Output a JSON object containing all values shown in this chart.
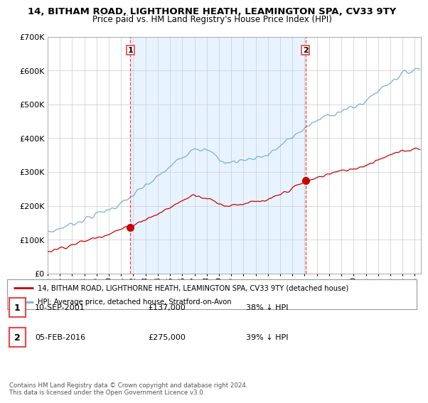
{
  "title": "14, BITHAM ROAD, LIGHTHORNE HEATH, LEAMINGTON SPA, CV33 9TY",
  "subtitle": "Price paid vs. HM Land Registry's House Price Index (HPI)",
  "ylim": [
    0,
    700000
  ],
  "yticks": [
    0,
    100000,
    200000,
    300000,
    400000,
    500000,
    600000,
    700000
  ],
  "ytick_labels": [
    "£0",
    "£100K",
    "£200K",
    "£300K",
    "£400K",
    "£500K",
    "£600K",
    "£700K"
  ],
  "hpi_color": "#7aafd4",
  "price_color": "#cc0000",
  "shade_color": "#ddeeff",
  "vline_color": "#ee4444",
  "legend_line1": "14, BITHAM ROAD, LIGHTHORNE HEATH, LEAMINGTON SPA, CV33 9TY (detached house)",
  "legend_line2": "HPI: Average price, detached house, Stratford-on-Avon",
  "table_row1": [
    "1",
    "10-SEP-2001",
    "£137,000",
    "38% ↓ HPI"
  ],
  "table_row2": [
    "2",
    "05-FEB-2016",
    "£275,000",
    "39% ↓ HPI"
  ],
  "footer": "Contains HM Land Registry data © Crown copyright and database right 2024.\nThis data is licensed under the Open Government Licence v3.0.",
  "xlim_start": 1995.0,
  "xlim_end": 2025.5,
  "sale1_year": 2001.75,
  "sale2_year": 2016.083,
  "sale1_price": 137000,
  "sale2_price": 275000,
  "background_color": "#ffffff",
  "grid_color": "#cccccc",
  "xtick_years": [
    1995,
    1996,
    1997,
    1998,
    1999,
    2000,
    2001,
    2002,
    2003,
    2004,
    2005,
    2006,
    2007,
    2008,
    2009,
    2010,
    2011,
    2012,
    2013,
    2014,
    2015,
    2016,
    2017,
    2018,
    2019,
    2020,
    2021,
    2022,
    2023,
    2024,
    2025
  ]
}
